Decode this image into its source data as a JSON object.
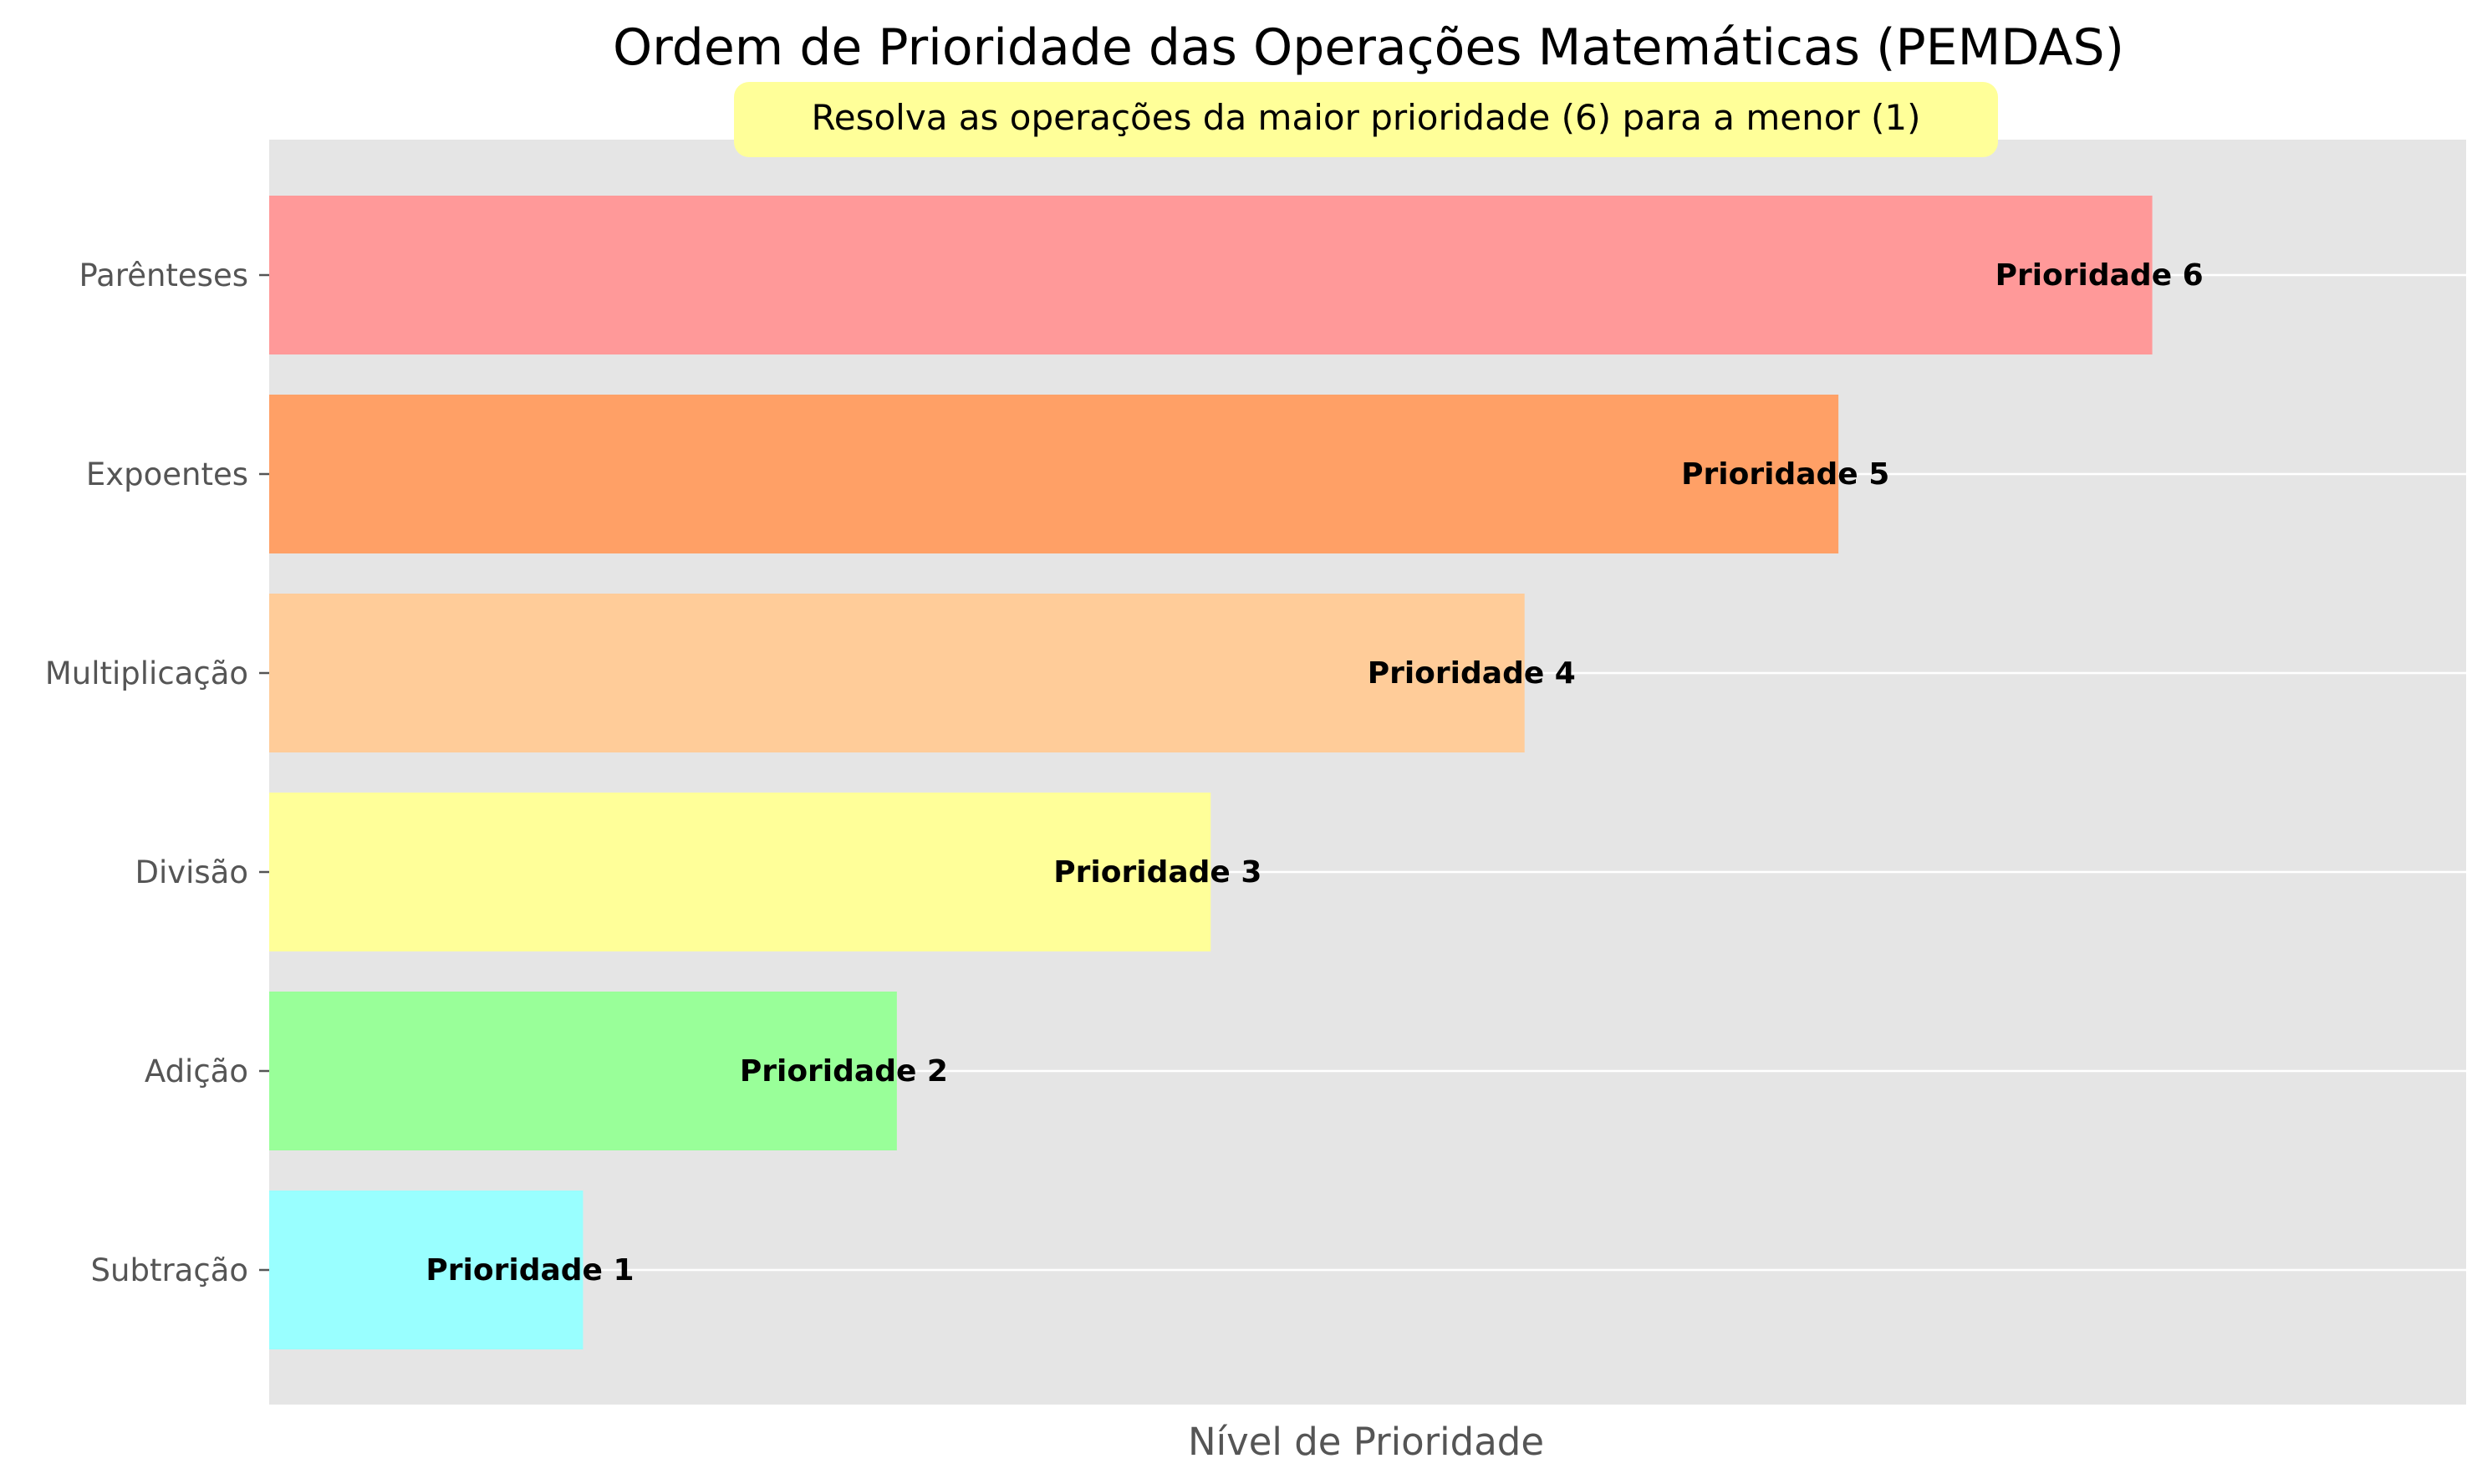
{
  "chart_data": {
    "type": "bar",
    "orientation": "horizontal",
    "title": "Ordem de Prioridade das Operações Matemáticas (PEMDAS)",
    "subtitle": "Resolva as operações da maior prioridade (6) para a menor (1)",
    "xlabel": "Nível de Prioridade",
    "ylabel": "",
    "xlim": [
      0,
      7
    ],
    "grid": true,
    "categories": [
      "Parênteses",
      "Expoentes",
      "Multiplicação",
      "Divisão",
      "Adição",
      "Subtração"
    ],
    "values": [
      6,
      5,
      4,
      3,
      2,
      1
    ],
    "labels": [
      "Prioridade 6",
      "Prioridade 5",
      "Prioridade 4",
      "Prioridade 3",
      "Prioridade 2",
      "Prioridade 1"
    ],
    "colors": [
      "#ff9999",
      "#ffa066",
      "#ffcc99",
      "#ffff99",
      "#99ff99",
      "#99ffff"
    ],
    "background_color": "#e5e5e5",
    "subtitle_box_color": "#ffff99"
  }
}
